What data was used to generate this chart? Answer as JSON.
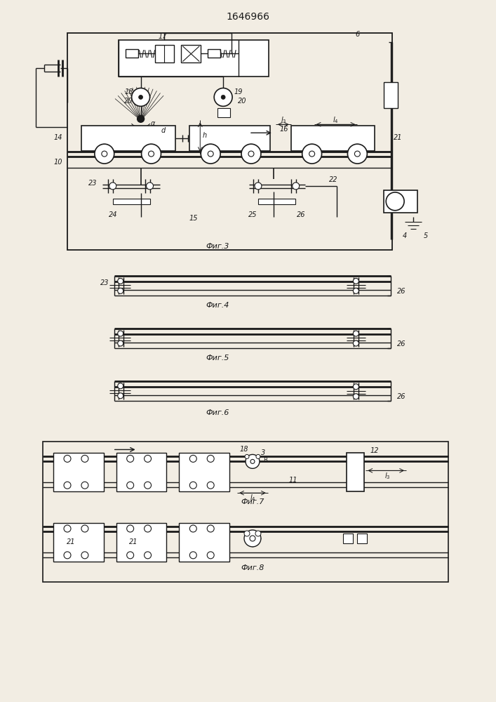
{
  "title": "1646966",
  "bg_color": "#f2ede3",
  "line_color": "#1a1a1a",
  "fig3_label": "Фиг.3",
  "fig4_label": "Фиг.4",
  "fig5_label": "Фиг.5",
  "fig6_label": "Фиг.6",
  "fig7_label": "Фиг.7",
  "fig8_label": "Фиг.8"
}
